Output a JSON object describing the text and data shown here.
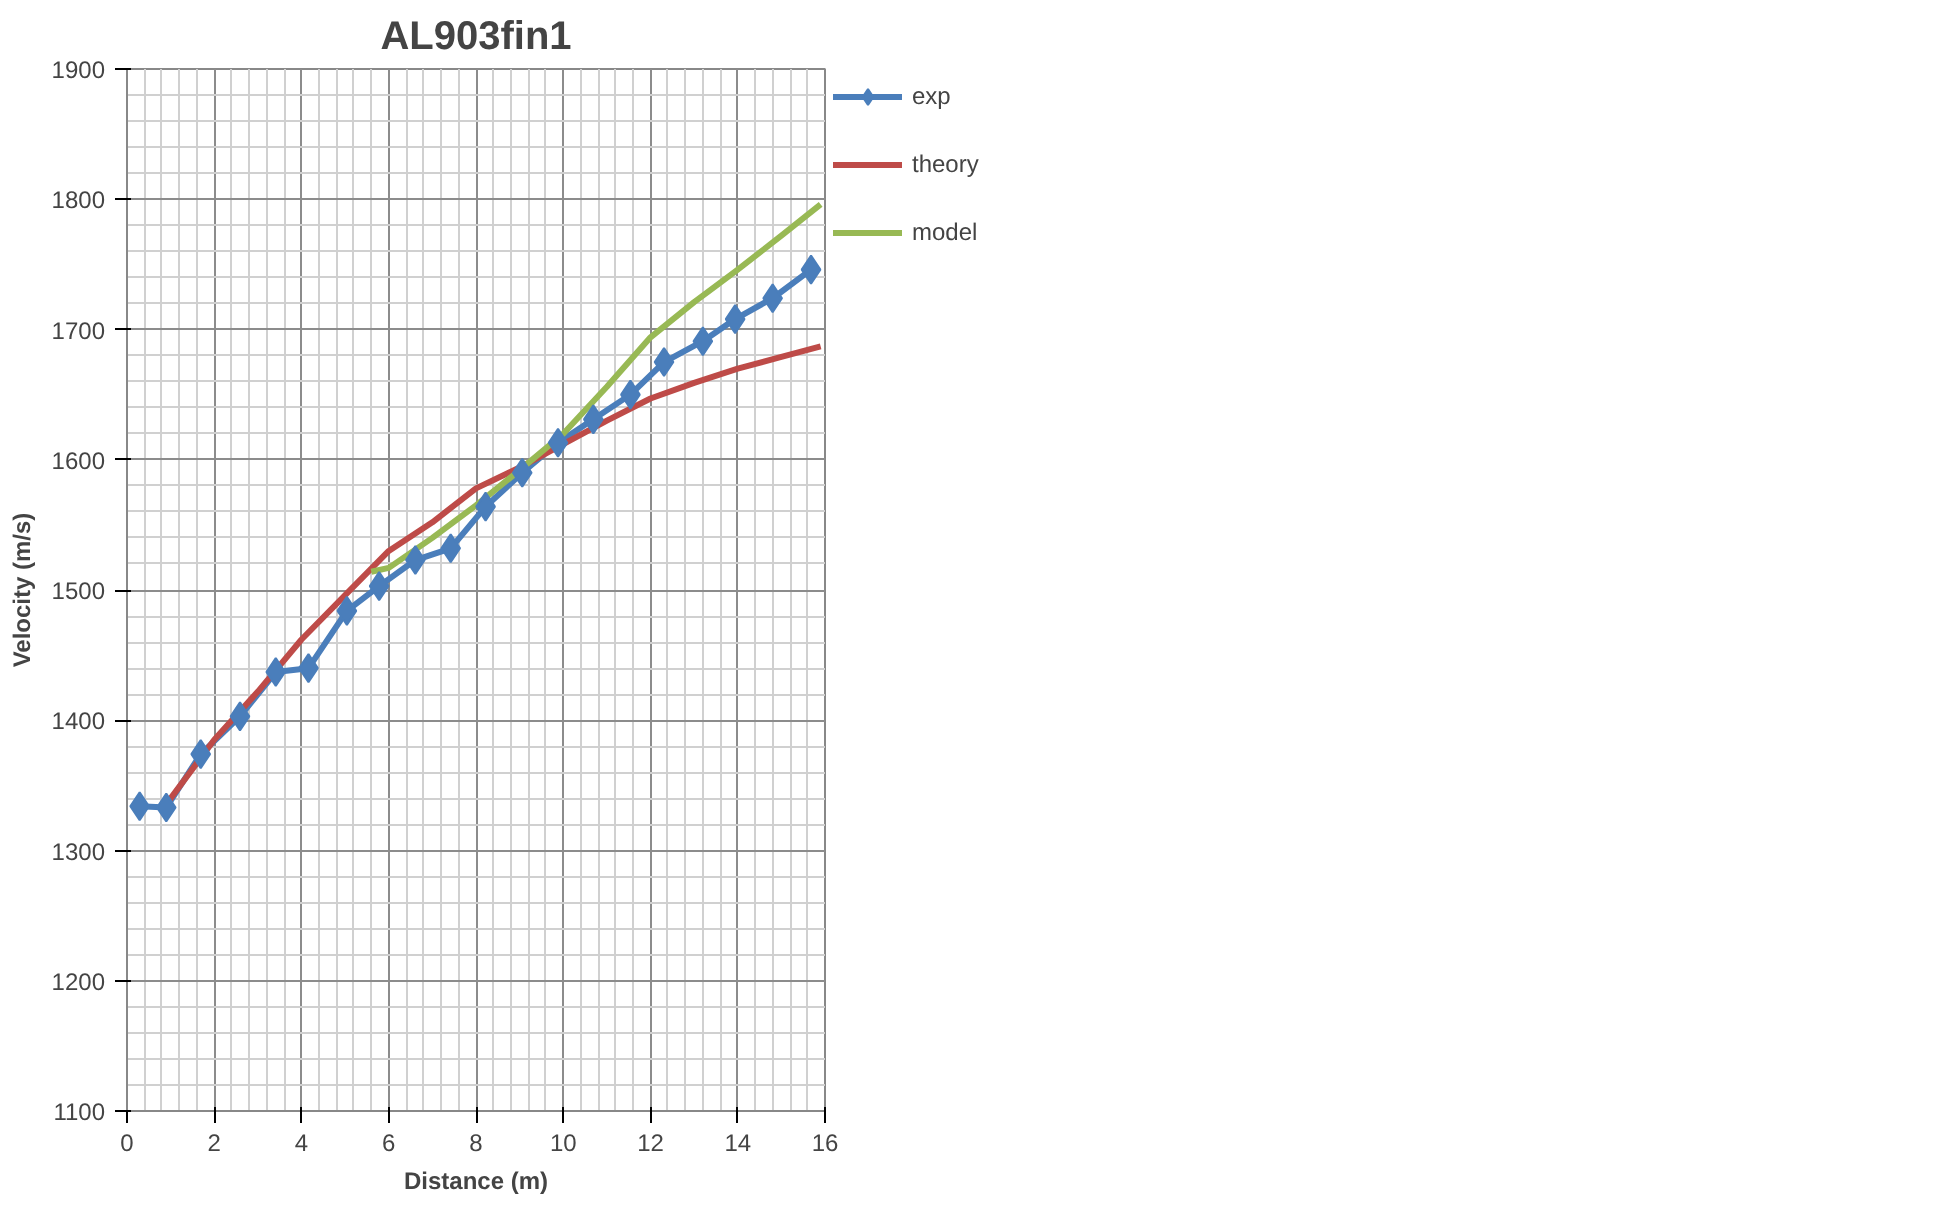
{
  "chart_data": {
    "type": "line",
    "title": "AL903fin1",
    "xlabel": "Distance (m)",
    "ylabel": "Velocity (m/s)",
    "xlim": [
      0,
      16
    ],
    "xticks": [
      0,
      2,
      4,
      6,
      8,
      10,
      12,
      14,
      16
    ],
    "ylim": [
      1100,
      1900
    ],
    "yticks": [
      1100,
      1200,
      1300,
      1400,
      1500,
      1600,
      1700,
      1800,
      1900
    ],
    "grid": true,
    "legend": "right",
    "series": [
      {
        "name": "exp",
        "color": "#4a7ebb",
        "marker": "diamond",
        "x": [
          0.29,
          0.9,
          1.69,
          2.59,
          3.41,
          4.16,
          5.04,
          5.78,
          6.61,
          7.42,
          8.22,
          9.06,
          9.88,
          10.69,
          11.54,
          12.31,
          13.2,
          13.94,
          14.8,
          15.68
        ],
        "values": [
          1334,
          1333,
          1374,
          1403,
          1437,
          1440,
          1484,
          1503,
          1523,
          1532,
          1564,
          1590,
          1613,
          1631,
          1650,
          1675,
          1691,
          1708,
          1724,
          1746
        ]
      },
      {
        "name": "theory",
        "color": "#be4b48",
        "marker": "none",
        "x": [
          0.9,
          1,
          2,
          3,
          4,
          5,
          6,
          7,
          8,
          9,
          10,
          11,
          12,
          13,
          14,
          15,
          15.9
        ],
        "values": [
          1333,
          1340,
          1385,
          1422,
          1462,
          1496,
          1530,
          1552,
          1578,
          1594,
          1612,
          1630,
          1647,
          1659,
          1670,
          1679,
          1687
        ]
      },
      {
        "name": "model",
        "color": "#98b954",
        "marker": "none",
        "x": [
          5.6,
          6,
          7,
          8,
          9,
          10,
          11,
          12,
          13,
          14,
          15,
          15.9
        ],
        "values": [
          1514,
          1517,
          1540,
          1565,
          1592,
          1620,
          1656,
          1694,
          1721,
          1746,
          1772,
          1796
        ]
      }
    ]
  }
}
